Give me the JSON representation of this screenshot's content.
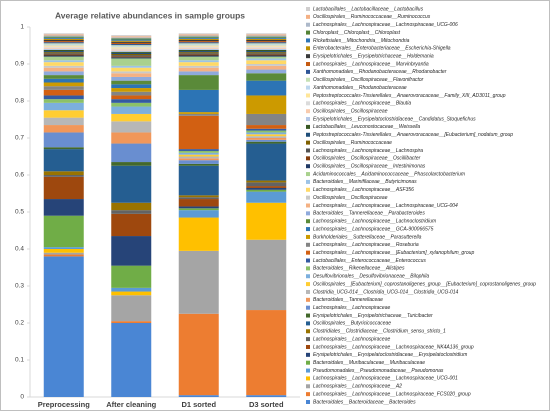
{
  "chart_data": {
    "type": "stacked-bar",
    "title": "Average relative abundances in sample groups",
    "categories": [
      "Preprocessing",
      "After cleaning",
      "D1 sorted",
      "D3 sorted"
    ],
    "ylim": [
      0,
      1
    ],
    "yticks": [
      0,
      0.1,
      0.2,
      0.3,
      0.4,
      0.5,
      0.6,
      0.7,
      0.8,
      0.9,
      1
    ],
    "legend": "right",
    "series": [
      {
        "name": "Lactobacillales__Lactobacillaceae__Lactobacillus",
        "color": "#d0cece",
        "values": [
          0.003,
          0.003,
          0.003,
          0.003
        ]
      },
      {
        "name": "Oscillospirales__Ruminococcaceae__Ruminococcus",
        "color": "#f4b084",
        "values": [
          0.003,
          0.003,
          0.003,
          0.003
        ]
      },
      {
        "name": "Lachnospirales__Lachnospiraceae__Lachnospiraceae_UCG-006",
        "color": "#adb9ca",
        "values": [
          0.003,
          0.003,
          0.003,
          0.003
        ]
      },
      {
        "name": "Chloroplast__Chloroplast__Chloroplast",
        "color": "#548235",
        "values": [
          0.003,
          0.003,
          0.003,
          0.003
        ]
      },
      {
        "name": "Rickettsiales__Mitochondria__Mitochondria",
        "color": "#2e75b6",
        "values": [
          0.003,
          0.003,
          0.003,
          0.003
        ]
      },
      {
        "name": "Enterobacterales__Enterobacteriaceae__Escherichia-Shigella",
        "color": "#bf9000",
        "values": [
          0.003,
          0.003,
          0.003,
          0.003
        ]
      },
      {
        "name": "Erysipelotrichales__Erysipelotrichaceae__Holdemania",
        "color": "#3a3a3a",
        "values": [
          0.003,
          0.003,
          0.003,
          0.003
        ]
      },
      {
        "name": "Lachnospirales__Lachnospiraceae__Marvinbryantia",
        "color": "#c55a11",
        "values": [
          0.003,
          0.003,
          0.003,
          0.003
        ]
      },
      {
        "name": "Xanthomonadales__Rhodanobacteraceae__Rhodanobacter",
        "color": "#2f5597",
        "values": [
          0.003,
          0.003,
          0.003,
          0.003
        ]
      },
      {
        "name": "Oscillospirales__Oscillospiraceae__Flavonifractor",
        "color": "#c5e0b4",
        "values": [
          0.003,
          0.003,
          0.003,
          0.003
        ]
      },
      {
        "name": "Xanthomonadales__Rhodanobacteraceae",
        "color": "#bdd7ee",
        "values": [
          0.003,
          0.003,
          0.003,
          0.003
        ]
      },
      {
        "name": "Peptostreptococcales-Tissierellales__Anaerovoracaceae__Family_XIII_AD3011_group",
        "color": "#ffe699",
        "values": [
          0.003,
          0.003,
          0.003,
          0.003
        ]
      },
      {
        "name": "Lachnospirales__Lachnospiraceae__Blautia",
        "color": "#dbdbdb",
        "values": [
          0.003,
          0.003,
          0.003,
          0.003
        ]
      },
      {
        "name": "Oscillospirales__Oscillospiraceae",
        "color": "#f8cbad",
        "values": [
          0.003,
          0.003,
          0.003,
          0.003
        ]
      },
      {
        "name": "Erysipelotrichales__Erysipelatoclostridiaceae__Candidatus_Stoquefichus",
        "color": "#b4c7e7",
        "values": [
          0.003,
          0.003,
          0.003,
          0.003
        ]
      },
      {
        "name": "Lactobacillales__Leuconostocaceae__Weissella",
        "color": "#385723",
        "values": [
          0.003,
          0.003,
          0.003,
          0.003
        ]
      },
      {
        "name": "Peptostreptococcales-Tissierellales__Anaerovoracaceae__[Eubacterium]_nodatum_group",
        "color": "#1f4e79",
        "values": [
          0.003,
          0.003,
          0.003,
          0.003
        ]
      },
      {
        "name": "Oscillospirales__Ruminococcaceae",
        "color": "#7f6000",
        "values": [
          0.003,
          0.003,
          0.003,
          0.003
        ]
      },
      {
        "name": "Lachnospirales__Lachnospiraceae__Lachnospira",
        "color": "#525252",
        "values": [
          0.003,
          0.003,
          0.003,
          0.003
        ]
      },
      {
        "name": "Oscillospirales__Oscillospiraceae__Oscillibacter",
        "color": "#843c0c",
        "values": [
          0.003,
          0.003,
          0.003,
          0.003
        ]
      },
      {
        "name": "Oscillospirales__Oscillospiraceae__Intestinimonas",
        "color": "#203864",
        "values": [
          0.003,
          0.003,
          0.003,
          0.003
        ]
      },
      {
        "name": "Acidaminococcales__Acidaminococcaceae__Phascolarctobacterium",
        "color": "#a9d18e",
        "values": [
          0.01,
          0.02,
          0.01,
          0.005
        ]
      },
      {
        "name": "Bacteroidales__Marinifilaceae__Butyricimonas",
        "color": "#9dc3e6",
        "values": [
          0.005,
          0.005,
          0.005,
          0.005
        ]
      },
      {
        "name": "Lachnospirales__Lachnospiraceae__ASF356",
        "color": "#ffd966",
        "values": [
          0.01,
          0.01,
          0.01,
          0.01
        ]
      },
      {
        "name": "Oscillospirales__Oscillospiraceae",
        "color": "#c9c9c9",
        "values": [
          0.005,
          0.005,
          0.005,
          0.005
        ]
      },
      {
        "name": "Lachnospirales__Lachnospiraceae__Lachnospiraceae_UCG-004",
        "color": "#f4b183",
        "values": [
          0.01,
          0.01,
          0.01,
          0.01
        ]
      },
      {
        "name": "Bacteroidales__Tannerellaceae__Parabacteroides",
        "color": "#8faadc",
        "values": [
          0.01,
          0.01,
          0.01,
          0.01
        ]
      },
      {
        "name": "Lachnospirales__Lachnospiraceae__Lachnoclostridium",
        "color": "#5a8a39",
        "values": [
          0.01,
          0.01,
          0.04,
          0.02
        ]
      },
      {
        "name": "Lachnospirales__Lachnospiraceae__GCA-900066575",
        "color": "#2c74b5",
        "values": [
          0.01,
          0.01,
          0.06,
          0.04
        ]
      },
      {
        "name": "Burkholderiales__Sutterellaceae__Parasutterella",
        "color": "#cc9a00",
        "values": [
          0.01,
          0.01,
          0.005,
          0.05
        ]
      },
      {
        "name": "Lachnospirales__Lachnospiraceae__Roseburia",
        "color": "#848484",
        "values": [
          0.01,
          0.01,
          0.005,
          0.03
        ]
      },
      {
        "name": "Lachnospirales__Lachnospiraceae__[Eubacterium]_xylanophilum_group",
        "color": "#d26012",
        "values": [
          0.015,
          0.01,
          0.09,
          0.01
        ]
      },
      {
        "name": "Lactobacillales__Enterococcaceae__Enterococcus",
        "color": "#335aa1",
        "values": [
          0.01,
          0.01,
          0.005,
          0.005
        ]
      },
      {
        "name": "Bacteroidales__Rikenellaceae__Alistipes",
        "color": "#8cc168",
        "values": [
          0.01,
          0.01,
          0.005,
          0.005
        ]
      },
      {
        "name": "Desulfovibrionales__Desulfovibrionaceae__Bilophila",
        "color": "#7cafdd",
        "values": [
          0.02,
          0.02,
          0.005,
          0.005
        ]
      },
      {
        "name": "Oscillospirales__[Eubacterium]_coprostanoligenes_group__[Eubacterium]_coprostanoligenes_group",
        "color": "#ffcd33",
        "values": [
          0.02,
          0.02,
          0.005,
          0.005
        ]
      },
      {
        "name": "Clostridia_UCG-014__Clostridia_UCG-014__Clostridia_UCG-014",
        "color": "#b7b7b7",
        "values": [
          0.02,
          0.03,
          0.005,
          0.005
        ]
      },
      {
        "name": "Bacteroidales__Tannerellaceae",
        "color": "#f1975a",
        "values": [
          0.02,
          0.03,
          0.005,
          0.005
        ]
      },
      {
        "name": "Lachnospirales__Lachnospiraceae",
        "color": "#698ed0",
        "values": [
          0.04,
          0.05,
          0.01,
          0.005
        ]
      },
      {
        "name": "Erysipelotrichales__Erysipelotrichaceae__Turicibacter",
        "color": "#43682b",
        "values": [
          0.005,
          0.01,
          0.005,
          0.005
        ]
      },
      {
        "name": "Oscillospirales__Butyricicoccaceae",
        "color": "#255e91",
        "values": [
          0.06,
          0.1,
          0.08,
          0.1
        ]
      },
      {
        "name": "Clostridiales__Clostridiaceae__Clostridium_sensu_stricto_1",
        "color": "#997300",
        "values": [
          0.01,
          0.02,
          0.005,
          0.005
        ]
      },
      {
        "name": "Lachnospirales__Lachnospiraceae",
        "color": "#636363",
        "values": [
          0.005,
          0.01,
          0.005,
          0.01
        ]
      },
      {
        "name": "Lachnospirales__Lachnospiraceae__Lachnospiraceae_NK4A136_group",
        "color": "#9e480e",
        "values": [
          0.06,
          0.06,
          0.02,
          0.005
        ]
      },
      {
        "name": "Erysipelotrichales__Erysipelatoclostridiaceae__Erysipelatoclostridium",
        "color": "#264478",
        "values": [
          0.045,
          0.08,
          0.005,
          0.005
        ]
      },
      {
        "name": "Bacteroidales__Muribaculaceae__Muribaculaceae",
        "color": "#70ad47",
        "values": [
          0.085,
          0.06,
          0.005,
          0.005
        ]
      },
      {
        "name": "Pseudomonadales__Pseudomonadaceae__Pseudomonas",
        "color": "#5b9bd5",
        "values": [
          0.005,
          0.01,
          0.02,
          0.03
        ]
      },
      {
        "name": "Lachnospirales__Lachnospiraceae__Lachnospiraceae_UCG-001",
        "color": "#ffc000",
        "values": [
          0.01,
          0.01,
          0.09,
          0.1
        ]
      },
      {
        "name": "Lachnospirales__Lachnospiraceae__A2",
        "color": "#a5a5a5",
        "values": [
          0.005,
          0.07,
          0.17,
          0.19
        ]
      },
      {
        "name": "Lachnospirales__Lachnospiraceae__Lachnospiraceae_FCS020_group",
        "color": "#ed7d31",
        "values": [
          0.005,
          0.005,
          0.22,
          0.23
        ]
      },
      {
        "name": "Bacteroidales__Bacteroidaceae__Bacteroides",
        "color": "#4a86d4",
        "values": [
          0.38,
          0.2,
          0.005,
          0.005
        ]
      }
    ]
  }
}
